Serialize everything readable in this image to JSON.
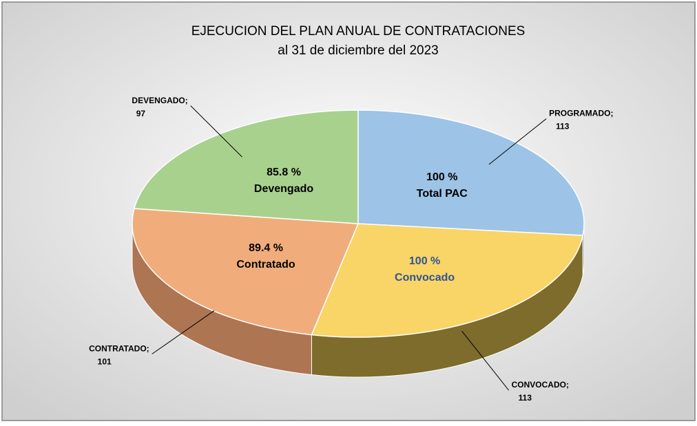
{
  "chart_data": {
    "type": "pie3d",
    "title": "EJECUCION DEL PLAN ANUAL DE CONTRATACIONES",
    "subtitle": "al 31 de diciembre del 2023",
    "categories": [
      "PROGRAMADO;",
      "CONVOCADO;",
      "CONTRATADO;",
      "DEVENGADO;"
    ],
    "values": [
      113,
      113,
      101,
      97
    ],
    "colors": [
      "#9dc3e6",
      "#f9d466",
      "#f0ad7b",
      "#a9d18e"
    ],
    "side_colors": [
      "#5f7f9c",
      "#7d6c2c",
      "#ad7552",
      "#6f8f5a"
    ],
    "inner_labels": [
      "100 %",
      "100 %",
      "89.4 %",
      "85.8 %"
    ],
    "inner_names": [
      "Total PAC",
      "Convocado",
      "Contratado",
      "Devengado"
    ],
    "inner_label_colors": [
      "#000000",
      "#2f5496",
      "#000000",
      "#000000"
    ]
  }
}
